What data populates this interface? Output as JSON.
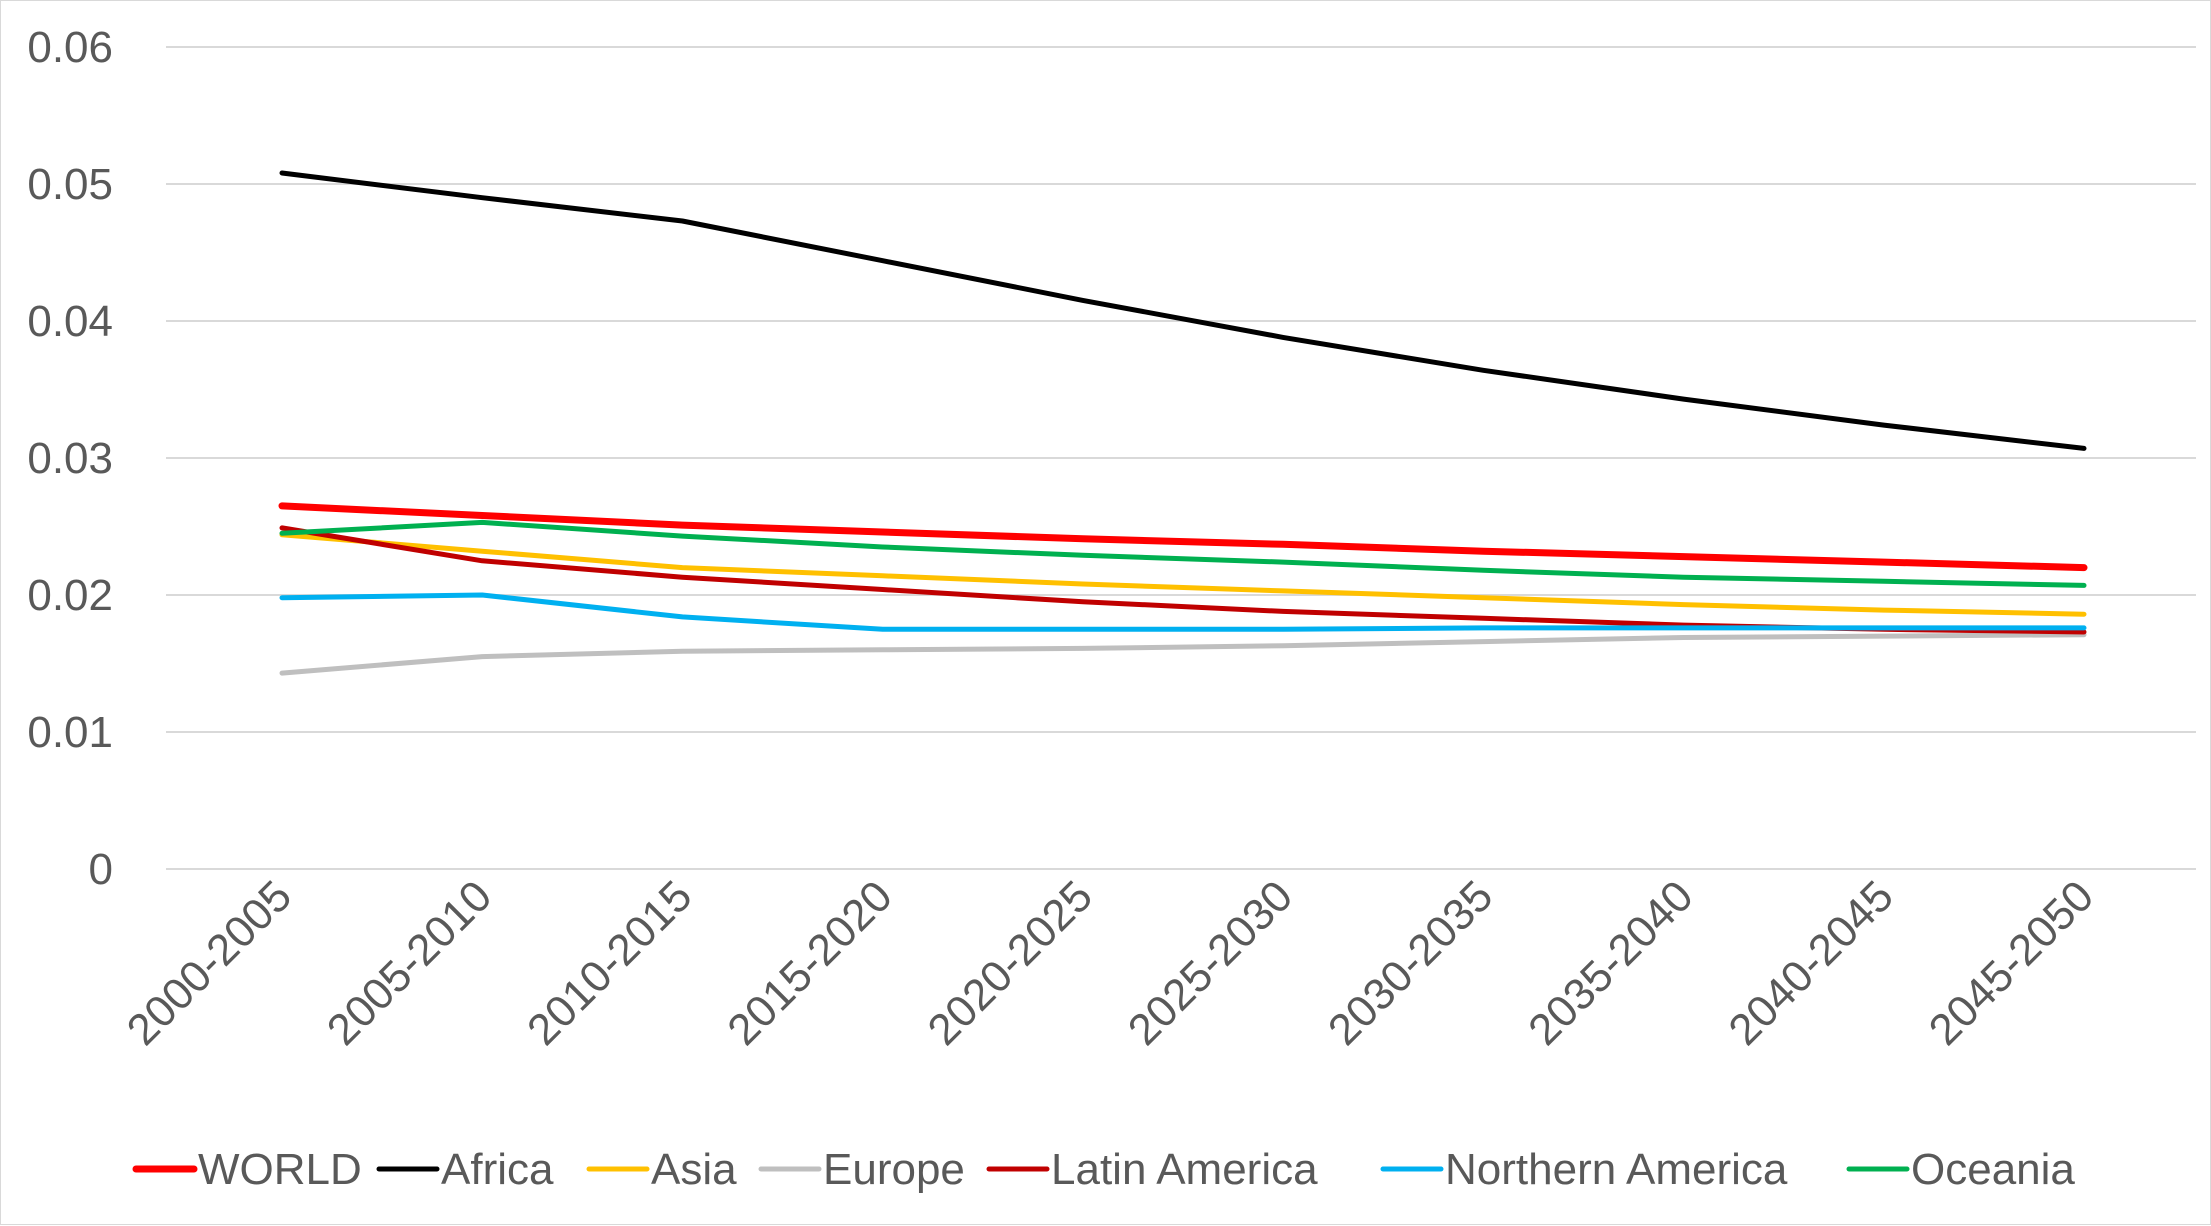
{
  "chart_data": {
    "type": "line",
    "title": "",
    "xlabel": "",
    "ylabel": "",
    "categories": [
      "2000-2005",
      "2005-2010",
      "2010-2015",
      "2015-2020",
      "2020-2025",
      "2025-2030",
      "2030-2035",
      "2035-2040",
      "2040-2045",
      "2045-2050"
    ],
    "ylim": [
      0,
      0.06
    ],
    "yticks": [
      "0",
      "0.01",
      "0.02",
      "0.03",
      "0.04",
      "0.05",
      "0.06"
    ],
    "grid": true,
    "legend_position": "bottom",
    "series": [
      {
        "name": "WORLD",
        "color": "#ff0000",
        "values": [
          0.0265,
          0.0258,
          0.0251,
          0.0246,
          0.0241,
          0.0237,
          0.0232,
          0.0228,
          0.0224,
          0.022
        ]
      },
      {
        "name": "Africa",
        "color": "#000000",
        "values": [
          0.0508,
          0.049,
          0.0473,
          0.0444,
          0.0415,
          0.0388,
          0.0364,
          0.0343,
          0.0324,
          0.0307
        ]
      },
      {
        "name": "Asia",
        "color": "#ffc000",
        "values": [
          0.0244,
          0.0232,
          0.022,
          0.0214,
          0.0208,
          0.0203,
          0.0198,
          0.0193,
          0.0189,
          0.0186
        ]
      },
      {
        "name": "Europe",
        "color": "#bfbfbf",
        "values": [
          0.0143,
          0.0155,
          0.0159,
          0.016,
          0.0161,
          0.0163,
          0.0166,
          0.0169,
          0.017,
          0.0171
        ]
      },
      {
        "name": "Latin America",
        "color": "#c00000",
        "values": [
          0.0249,
          0.0225,
          0.0213,
          0.0204,
          0.0195,
          0.0188,
          0.0183,
          0.0178,
          0.0175,
          0.0173
        ]
      },
      {
        "name": "Northern America",
        "color": "#00b0f0",
        "values": [
          0.0198,
          0.02,
          0.0184,
          0.0175,
          0.0175,
          0.0175,
          0.0176,
          0.0176,
          0.0176,
          0.0176
        ]
      },
      {
        "name": "Oceania",
        "color": "#00b050",
        "values": [
          0.0245,
          0.0253,
          0.0243,
          0.0235,
          0.0229,
          0.0224,
          0.0218,
          0.0213,
          0.021,
          0.0207
        ]
      }
    ]
  }
}
